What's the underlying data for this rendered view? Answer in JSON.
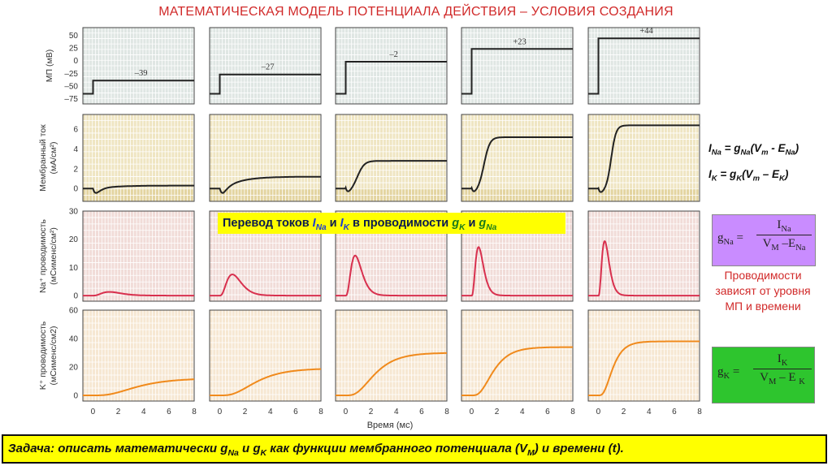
{
  "slide_title": "МАТЕМАТИЧЕСКАЯ МОДЕЛЬ ПОТЕНЦИАЛА ДЕЙСТВИЯ – УСЛОВИЯ СОЗДАНИЯ",
  "banner": {
    "prefix": "Перевод токов ",
    "i_na": "I",
    "i_na_sub": "Na",
    "and1": " и ",
    "i_k": "I",
    "i_k_sub": "K",
    "mid": " в проводимости ",
    "g_k": "g",
    "g_k_sub": "K",
    "and2": " и ",
    "g_na": "g",
    "g_na_sub": "Na"
  },
  "equations": {
    "ina": {
      "lhs": "I",
      "lhs_sub": "Na",
      "eq": " = g",
      "g_sub": "Na",
      "rest1": "(V",
      "vm_sub": "m",
      "rest2": " - E",
      "e_sub": "Na",
      "rest3": ")"
    },
    "ik": {
      "lhs": "I",
      "lhs_sub": "K",
      "eq": " = g",
      "g_sub": "K",
      "rest1": "(V",
      "vm_sub": "m",
      "rest2": " – E",
      "e_sub": "K",
      "rest3": ")"
    }
  },
  "gna_formula": {
    "lhs": "g",
    "lhs_sub": "Na",
    "eq": " =",
    "num": "I",
    "num_sub": "Na",
    "den_v": "V",
    "den_v_sub": "M",
    "den_minus": " –E",
    "den_e_sub": "Na"
  },
  "gk_formula": {
    "lhs": "g",
    "lhs_sub": "K",
    "eq": " =",
    "num": "I",
    "num_sub": "K",
    "den_v": "V",
    "den_v_sub": "M",
    "den_minus": " – E ",
    "den_e_sub": "K"
  },
  "note": "Проводимости зависят от уровня МП и времени",
  "task": {
    "prefix": "Задача: описать математически g",
    "gna_sub": "Na",
    "mid1": " и g",
    "gk_sub": "K",
    "mid2": "  как функции мембранного потенциала (V",
    "vm_sub": "M",
    "suffix": ") и времени (t)."
  },
  "chart_data": {
    "type": "line",
    "columns": 5,
    "xlabel": "Время (мс)",
    "x_ticks": [
      0,
      2,
      4,
      6,
      8
    ],
    "xlim": [
      -0.8,
      8
    ],
    "step_voltages": [
      -39,
      -27,
      -2,
      23,
      44
    ],
    "step_labels": [
      "–39",
      "–27",
      "–2",
      "+23",
      "+44"
    ],
    "rows": [
      {
        "name": "mp",
        "ylabel": "МП (мВ)",
        "ylim": [
          -85,
          65
        ],
        "y_ticks": [
          50,
          25,
          0,
          -25,
          -50,
          -75
        ],
        "tick_labels": [
          "50",
          "25",
          "0",
          "–25",
          "–50",
          "–75"
        ]
      },
      {
        "name": "current",
        "ylabel": "Мембранный ток (мА/см²)",
        "ylim": [
          -1.3,
          7.5
        ],
        "y_ticks": [
          6,
          4,
          2,
          0
        ],
        "tick_labels": [
          "6",
          "4",
          "2",
          "0"
        ],
        "steady_values": [
          0.3,
          1.2,
          2.8,
          5.2,
          6.4
        ]
      },
      {
        "name": "na",
        "ylabel1": "Na⁺ проводимость",
        "ylabel2": "(мСименс/см²)",
        "ylim": [
          -2,
          30
        ],
        "y_ticks": [
          30,
          20,
          10,
          0
        ],
        "tick_labels": [
          "30",
          "20",
          "10",
          "0"
        ],
        "peak_values": [
          1.3,
          7.5,
          14.2,
          17.2,
          19.3
        ],
        "peak_times": [
          1.3,
          1.0,
          0.75,
          0.55,
          0.5
        ]
      },
      {
        "name": "k",
        "ylabel1": "K⁺ проводимость",
        "ylabel2": "(мСименс/см2)",
        "ylim": [
          -4,
          60
        ],
        "y_ticks": [
          60,
          40,
          20,
          0
        ],
        "tick_labels": [
          "60",
          "40",
          "20",
          "0"
        ],
        "steady_values": [
          12,
          19,
          30,
          34,
          38
        ]
      }
    ]
  }
}
